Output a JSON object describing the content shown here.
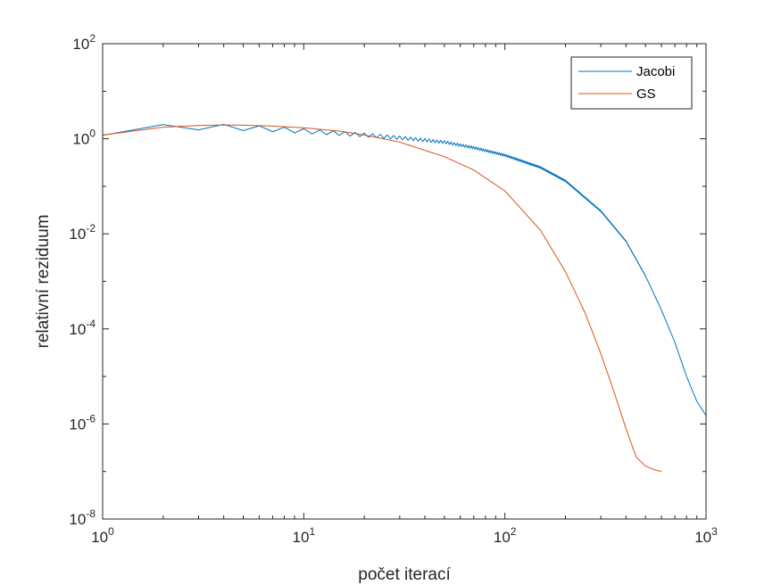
{
  "chart_data": {
    "type": "line",
    "xlabel": "počet iterací",
    "ylabel": "relativní reziduum",
    "xscale": "log",
    "yscale": "log",
    "xlim": [
      1,
      1000
    ],
    "ylim": [
      1e-08,
      100
    ],
    "grid": false,
    "legend_position": "top-right",
    "x_ticks": [
      {
        "value": 1,
        "base": "10",
        "exp": "0"
      },
      {
        "value": 10,
        "base": "10",
        "exp": "1"
      },
      {
        "value": 100,
        "base": "10",
        "exp": "2"
      },
      {
        "value": 1000,
        "base": "10",
        "exp": "3"
      }
    ],
    "y_ticks": [
      {
        "value": 1e-08,
        "base": "10",
        "exp": "-8"
      },
      {
        "value": 1e-06,
        "base": "10",
        "exp": "-6"
      },
      {
        "value": 0.0001,
        "base": "10",
        "exp": "-4"
      },
      {
        "value": 0.01,
        "base": "10",
        "exp": "-2"
      },
      {
        "value": 1,
        "base": "10",
        "exp": "0"
      },
      {
        "value": 100,
        "base": "10",
        "exp": "2"
      }
    ],
    "series": [
      {
        "name": "Jacobi",
        "color": "#0072BD",
        "oscillation": {
          "amplitude_decades": [
            0.15,
            0.01
          ],
          "until_iteration": 500
        },
        "x": [
          1,
          2,
          3,
          4,
          5,
          6,
          8,
          10,
          15,
          20,
          30,
          50,
          70,
          100,
          150,
          200,
          300,
          400,
          500,
          600,
          700,
          800,
          900,
          1000
        ],
        "y": [
          1.4,
          1.7,
          1.78,
          1.75,
          1.7,
          1.65,
          1.55,
          1.45,
          1.3,
          1.2,
          1.05,
          0.85,
          0.65,
          0.45,
          0.25,
          0.13,
          0.03,
          0.007,
          0.0013,
          0.00025,
          5.2e-05,
          1e-05,
          3e-06,
          1.5e-06
        ]
      },
      {
        "name": "GS",
        "color": "#D95319",
        "x": [
          1,
          1.5,
          2,
          3,
          4,
          5,
          7,
          10,
          15,
          20,
          30,
          50,
          70,
          100,
          150,
          200,
          250,
          300,
          350,
          400,
          450,
          500,
          550,
          600
        ],
        "y": [
          1.2,
          1.55,
          1.75,
          1.9,
          1.95,
          1.93,
          1.85,
          1.7,
          1.45,
          1.2,
          0.85,
          0.42,
          0.22,
          0.08,
          0.012,
          0.0016,
          0.00022,
          3e-05,
          4.5e-06,
          8e-07,
          2e-07,
          1.3e-07,
          1.1e-07,
          1e-07
        ]
      }
    ]
  }
}
